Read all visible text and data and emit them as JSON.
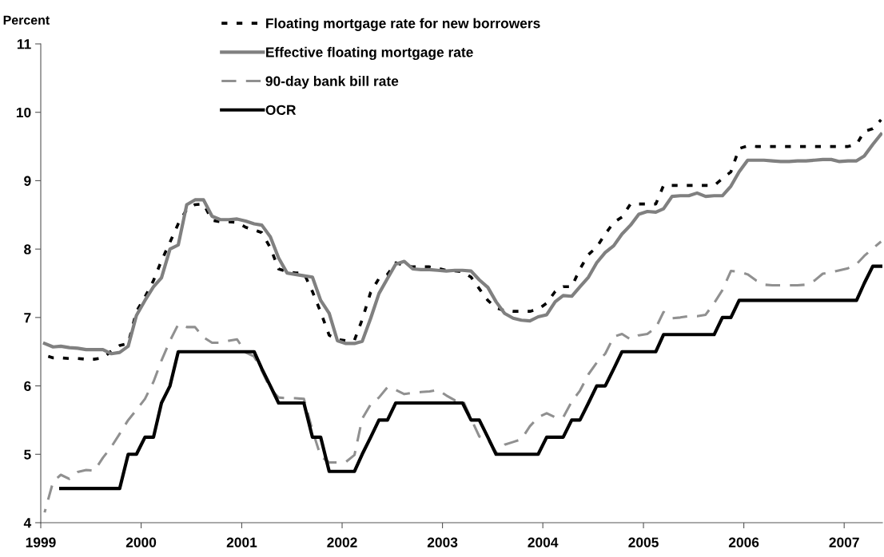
{
  "chart_data": {
    "type": "line",
    "ylabel": "Percent",
    "x": [
      "1999-01-15",
      "1999-02-15",
      "1999-03-15",
      "1999-04-15",
      "1999-05-15",
      "1999-06-15",
      "1999-07-15",
      "1999-08-15",
      "1999-09-15",
      "1999-10-15",
      "1999-11-15",
      "1999-12-15",
      "2000-01-15",
      "2000-02-15",
      "2000-03-15",
      "2000-04-15",
      "2000-05-15",
      "2000-06-15",
      "2000-07-15",
      "2000-08-15",
      "2000-09-15",
      "2000-10-15",
      "2000-11-15",
      "2000-12-15",
      "2001-01-15",
      "2001-02-15",
      "2001-03-15",
      "2001-04-15",
      "2001-05-15",
      "2001-06-15",
      "2001-07-15",
      "2001-08-15",
      "2001-09-15",
      "2001-10-15",
      "2001-11-15",
      "2001-12-15",
      "2002-01-15",
      "2002-02-15",
      "2002-03-15",
      "2002-04-15",
      "2002-05-15",
      "2002-06-15",
      "2002-07-15",
      "2002-08-15",
      "2002-09-15",
      "2002-10-15",
      "2002-11-15",
      "2002-12-15",
      "2003-01-15",
      "2003-02-15",
      "2003-03-15",
      "2003-04-15",
      "2003-05-15",
      "2003-06-15",
      "2003-07-15",
      "2003-08-15",
      "2003-09-15",
      "2003-10-15",
      "2003-11-15",
      "2003-12-15",
      "2004-01-15",
      "2004-02-15",
      "2004-03-15",
      "2004-04-15",
      "2004-05-15",
      "2004-06-15",
      "2004-07-15",
      "2004-08-15",
      "2004-09-15",
      "2004-10-15",
      "2004-11-15",
      "2004-12-15",
      "2005-01-15",
      "2005-02-15",
      "2005-03-15",
      "2005-04-15",
      "2005-05-15",
      "2005-06-15",
      "2005-07-15",
      "2005-08-15",
      "2005-09-15",
      "2005-10-15",
      "2005-11-15",
      "2005-12-15",
      "2006-01-15",
      "2006-02-15",
      "2006-03-15",
      "2006-04-15",
      "2006-05-15",
      "2006-06-15",
      "2006-07-15",
      "2006-08-15",
      "2006-09-15",
      "2006-10-15",
      "2006-11-15",
      "2006-12-15",
      "2007-01-15",
      "2007-02-15",
      "2007-03-15",
      "2007-04-15",
      "2007-05-15"
    ],
    "series": [
      {
        "name": "Floating mortgage rate for new borrowers",
        "color": "#000000",
        "line_style": "dotted",
        "values": [
          6.45,
          6.41,
          6.41,
          6.4,
          6.4,
          6.39,
          6.39,
          6.41,
          6.51,
          6.59,
          6.62,
          7.09,
          7.3,
          7.54,
          7.83,
          8.1,
          8.37,
          8.58,
          8.65,
          8.66,
          8.42,
          8.4,
          8.4,
          8.39,
          8.32,
          8.28,
          8.24,
          8.02,
          7.71,
          7.67,
          7.65,
          7.65,
          7.38,
          7.08,
          6.74,
          6.68,
          6.66,
          6.67,
          6.97,
          7.37,
          7.57,
          7.63,
          7.8,
          7.76,
          7.74,
          7.74,
          7.74,
          7.72,
          7.69,
          7.68,
          7.67,
          7.59,
          7.42,
          7.25,
          7.14,
          7.1,
          7.09,
          7.09,
          7.09,
          7.12,
          7.21,
          7.38,
          7.45,
          7.45,
          7.71,
          7.92,
          8.03,
          8.22,
          8.39,
          8.47,
          8.66,
          8.66,
          8.66,
          8.66,
          8.93,
          8.93,
          8.93,
          8.93,
          8.93,
          8.93,
          8.93,
          9.03,
          9.13,
          9.47,
          9.51,
          9.5,
          9.5,
          9.5,
          9.5,
          9.5,
          9.5,
          9.5,
          9.5,
          9.5,
          9.5,
          9.5,
          9.5,
          9.53,
          9.72,
          9.76,
          9.89
        ]
      },
      {
        "name": "Effective floating mortgage rate",
        "color": "#808080",
        "line_style": "solid",
        "values": [
          6.62,
          6.57,
          6.58,
          6.56,
          6.55,
          6.53,
          6.53,
          6.53,
          6.47,
          6.49,
          6.58,
          7.03,
          7.25,
          7.45,
          7.58,
          8.0,
          8.06,
          8.65,
          8.72,
          8.72,
          8.48,
          8.43,
          8.43,
          8.44,
          8.41,
          8.37,
          8.35,
          8.18,
          7.87,
          7.65,
          7.63,
          7.61,
          7.59,
          7.25,
          7.06,
          6.66,
          6.62,
          6.62,
          6.65,
          6.99,
          7.35,
          7.57,
          7.78,
          7.82,
          7.71,
          7.7,
          7.7,
          7.69,
          7.68,
          7.69,
          7.69,
          7.68,
          7.55,
          7.44,
          7.23,
          7.06,
          6.99,
          6.96,
          6.95,
          7.01,
          7.04,
          7.23,
          7.32,
          7.31,
          7.45,
          7.59,
          7.8,
          7.95,
          8.05,
          8.22,
          8.35,
          8.51,
          8.55,
          8.54,
          8.59,
          8.77,
          8.78,
          8.78,
          8.82,
          8.77,
          8.78,
          8.78,
          8.92,
          9.13,
          9.3,
          9.3,
          9.3,
          9.29,
          9.28,
          9.28,
          9.29,
          9.29,
          9.3,
          9.31,
          9.31,
          9.28,
          9.29,
          9.29,
          9.36,
          9.53,
          9.68
        ]
      },
      {
        "name": "90-day bank bill rate",
        "color": "#909090",
        "line_style": "dashed",
        "values": [
          4.15,
          4.6,
          4.7,
          4.64,
          4.74,
          4.77,
          4.76,
          4.95,
          5.11,
          5.3,
          5.5,
          5.65,
          5.81,
          6.06,
          6.37,
          6.66,
          6.9,
          6.86,
          6.86,
          6.71,
          6.63,
          6.63,
          6.66,
          6.68,
          6.49,
          6.43,
          6.22,
          5.96,
          5.83,
          5.82,
          5.82,
          5.81,
          5.35,
          4.97,
          4.88,
          4.88,
          4.89,
          4.99,
          5.52,
          5.73,
          5.83,
          5.98,
          5.94,
          5.88,
          5.9,
          5.91,
          5.92,
          5.94,
          5.86,
          5.79,
          5.8,
          5.52,
          5.26,
          5.22,
          5.03,
          5.14,
          5.18,
          5.22,
          5.41,
          5.54,
          5.6,
          5.54,
          5.54,
          5.77,
          5.93,
          6.17,
          6.34,
          6.47,
          6.72,
          6.76,
          6.68,
          6.74,
          6.76,
          6.85,
          7.08,
          6.99,
          7.0,
          7.02,
          7.02,
          7.04,
          7.21,
          7.4,
          7.68,
          7.67,
          7.63,
          7.54,
          7.48,
          7.47,
          7.47,
          7.47,
          7.47,
          7.48,
          7.54,
          7.64,
          7.66,
          7.69,
          7.72,
          7.78,
          7.9,
          8.01,
          8.11
        ]
      },
      {
        "name": "OCR",
        "color": "#000000",
        "line_style": "solid",
        "values": [
          null,
          null,
          4.5,
          4.5,
          4.5,
          4.5,
          4.5,
          4.5,
          4.5,
          4.5,
          5.0,
          5.0,
          5.25,
          5.25,
          5.75,
          6.0,
          6.5,
          6.5,
          6.5,
          6.5,
          6.5,
          6.5,
          6.5,
          6.5,
          6.5,
          6.5,
          6.25,
          6.0,
          5.75,
          5.75,
          5.75,
          5.75,
          5.25,
          5.25,
          4.75,
          4.75,
          4.75,
          4.75,
          5.0,
          5.25,
          5.5,
          5.5,
          5.75,
          5.75,
          5.75,
          5.75,
          5.75,
          5.75,
          5.75,
          5.75,
          5.75,
          5.5,
          5.5,
          5.25,
          5.0,
          5.0,
          5.0,
          5.0,
          5.0,
          5.0,
          5.25,
          5.25,
          5.25,
          5.5,
          5.5,
          5.75,
          6.0,
          6.0,
          6.25,
          6.5,
          6.5,
          6.5,
          6.5,
          6.5,
          6.75,
          6.75,
          6.75,
          6.75,
          6.75,
          6.75,
          6.75,
          7.0,
          7.0,
          7.25,
          7.25,
          7.25,
          7.25,
          7.25,
          7.25,
          7.25,
          7.25,
          7.25,
          7.25,
          7.25,
          7.25,
          7.25,
          7.25,
          7.25,
          7.5,
          7.75,
          7.75
        ]
      }
    ],
    "xlim": [
      "1999-01-01",
      "2007-05-20"
    ],
    "xticks": [
      {
        "value": "1999-01-01",
        "label": "1999"
      },
      {
        "value": "2000-01-01",
        "label": "2000"
      },
      {
        "value": "2001-01-01",
        "label": "2001"
      },
      {
        "value": "2002-01-01",
        "label": "2002"
      },
      {
        "value": "2003-01-01",
        "label": "2003"
      },
      {
        "value": "2004-01-01",
        "label": "2004"
      },
      {
        "value": "2005-01-01",
        "label": "2005"
      },
      {
        "value": "2006-01-01",
        "label": "2006"
      },
      {
        "value": "2007-01-01",
        "label": "2007"
      }
    ],
    "ylim": [
      4,
      11
    ],
    "yticks": [
      4,
      5,
      6,
      7,
      8,
      9,
      10,
      11
    ],
    "grid": false,
    "legend": "top",
    "marker": "none"
  }
}
